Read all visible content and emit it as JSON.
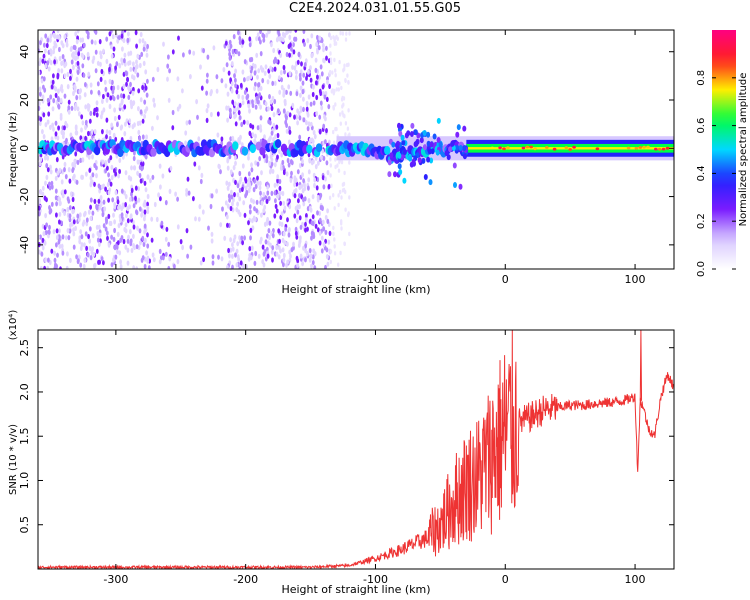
{
  "title": "C2E4.2024.031.01.55.G05",
  "colors": {
    "trace": "#ee3333",
    "cmap": [
      "#ffffff",
      "#d8c8ff",
      "#7a1cff",
      "#2222ff",
      "#00d8ff",
      "#00ff44",
      "#ffee00",
      "#ff2020",
      "#ff0080"
    ]
  },
  "chart_data": [
    {
      "type": "heatmap",
      "xlabel": "Height of straight line (km)",
      "ylabel": "Frequency (Hz)",
      "xlim": [
        -360,
        130
      ],
      "ylim": [
        -50,
        49
      ],
      "xticks": [
        -300,
        -200,
        -100,
        0,
        100
      ],
      "xtick_labels": [
        "-300",
        "-200",
        "-100",
        "0",
        "100"
      ],
      "yticks": [
        -40,
        -20,
        0,
        20,
        40
      ],
      "ytick_labels": [
        "-40",
        "-20",
        "0",
        "20",
        "40"
      ],
      "grid": false,
      "colorbar": {
        "label": "Normalized spectral amplitude",
        "range": [
          0,
          1
        ],
        "ticks": [
          0.0,
          0.2,
          0.4,
          0.6,
          0.8
        ],
        "tick_labels": [
          "0.0",
          "0.2",
          "0.4",
          "0.6",
          "0.8"
        ]
      },
      "features": {
        "carrier_frequency_hz": 0,
        "noise_region_x": [
          -360,
          -135
        ],
        "tone_region_x": [
          -130,
          130
        ],
        "strong_tone_start_x": -30
      }
    },
    {
      "type": "line",
      "xlabel": "Height of straight line (km)",
      "ylabel": "SNR (10 * v/v)",
      "yscale_label": "(x10⁴)",
      "xlim": [
        -360,
        130
      ],
      "ylim": [
        0,
        2.7
      ],
      "xticks": [
        -300,
        -200,
        -100,
        0,
        100
      ],
      "xtick_labels": [
        "-300",
        "-200",
        "-100",
        "0",
        "100"
      ],
      "yticks": [
        0.5,
        1.0,
        1.5,
        2.0,
        2.5
      ],
      "ytick_labels": [
        "0.5",
        "1.0",
        "1.5",
        "2.0",
        "2.5"
      ],
      "grid": false,
      "series": [
        {
          "x": [
            -360,
            -300,
            -200,
            -150,
            -120,
            -100,
            -80,
            -60,
            -50,
            -40,
            -30,
            -20,
            -10,
            0,
            10,
            20,
            30,
            40,
            50,
            60,
            70,
            80,
            90,
            95,
            100,
            102,
            104,
            106,
            110,
            115,
            120,
            125,
            130
          ],
          "values": [
            0.02,
            0.02,
            0.02,
            0.02,
            0.04,
            0.12,
            0.22,
            0.35,
            0.5,
            0.75,
            0.95,
            1.05,
            1.3,
            1.55,
            1.65,
            1.72,
            1.8,
            1.82,
            1.85,
            1.85,
            1.87,
            1.88,
            1.9,
            1.92,
            1.95,
            1.1,
            1.9,
            1.85,
            1.6,
            1.5,
            1.95,
            2.2,
            2.05
          ]
        }
      ]
    }
  ]
}
